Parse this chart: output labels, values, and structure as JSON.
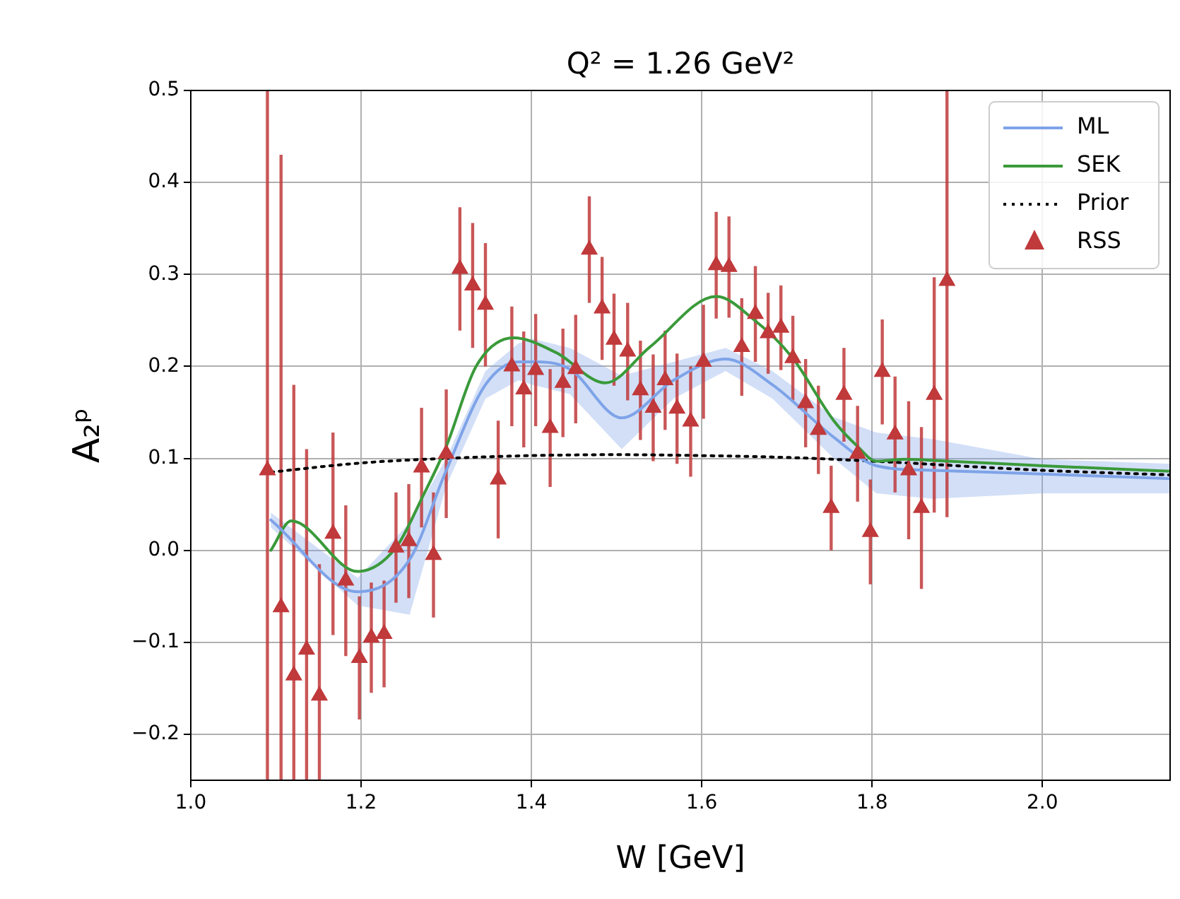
{
  "chart_data": {
    "type": "line",
    "title": "Q² = 1.26 GeV²",
    "xlabel": "W [GeV]",
    "ylabel": "A₂ᵖ",
    "xlim": [
      1.0,
      2.15
    ],
    "xticks": [
      {
        "value": 1.0,
        "label": "1.0"
      },
      1.2,
      1.4,
      1.6,
      1.8,
      {
        "value": 2.0,
        "label": "2.0"
      }
    ],
    "ylim": [
      -0.25,
      0.5
    ],
    "yticks": [
      {
        "value": -0.2,
        "label": "−0.2"
      },
      {
        "value": -0.1,
        "label": "−0.1"
      },
      {
        "value": 0,
        "label": "0.0"
      },
      0.1,
      0.2,
      0.3,
      0.4,
      0.5
    ],
    "grid": true,
    "legend": "top right",
    "series": [
      {
        "name": "ML",
        "color": "#7ea3e8",
        "marker": "none",
        "line_style": "solid",
        "x": [
          1.094,
          1.196,
          1.257,
          1.3,
          1.346,
          1.385,
          1.401,
          1.445,
          1.506,
          1.567,
          1.628,
          1.683,
          1.755,
          1.805,
          1.871,
          2.0,
          2.15
        ],
        "values": [
          0.033,
          -0.045,
          -0.01,
          0.087,
          0.18,
          0.205,
          0.205,
          0.197,
          0.144,
          0.185,
          0.208,
          0.18,
          0.123,
          0.092,
          0.087,
          0.083,
          0.078
        ],
        "lower": [
          0.025,
          -0.06,
          -0.07,
          0.07,
          0.165,
          0.185,
          0.18,
          0.17,
          0.11,
          0.165,
          0.195,
          0.165,
          0.1,
          0.062,
          0.056,
          0.062,
          0.062
        ],
        "upper": [
          0.041,
          -0.03,
          0.03,
          0.1,
          0.195,
          0.225,
          0.23,
          0.22,
          0.19,
          0.205,
          0.22,
          0.195,
          0.145,
          0.128,
          0.121,
          0.099,
          0.094
        ]
      },
      {
        "name": "SEK",
        "color": "#3a9a3a",
        "marker": "none",
        "line_style": "solid",
        "x": [
          1.094,
          1.118,
          1.196,
          1.241,
          1.271,
          1.3,
          1.335,
          1.379,
          1.429,
          1.487,
          1.539,
          1.617,
          1.661,
          1.706,
          1.755,
          1.783,
          1.805,
          1.838,
          1.888,
          2.0,
          2.15
        ],
        "values": [
          0.0,
          0.032,
          -0.023,
          0.003,
          0.056,
          0.113,
          0.2,
          0.231,
          0.215,
          0.182,
          0.221,
          0.276,
          0.251,
          0.21,
          0.141,
          0.113,
          0.097,
          0.099,
          0.097,
          0.092,
          0.086
        ]
      },
      {
        "name": "Prior",
        "color": "#000000",
        "marker": "none",
        "line_style": "dotted",
        "x": [
          1.094,
          1.2,
          1.3,
          1.4,
          1.5,
          1.6,
          1.7,
          1.8,
          2.0,
          2.15
        ],
        "values": [
          0.085,
          0.095,
          0.1,
          0.103,
          0.104,
          0.103,
          0.101,
          0.097,
          0.087,
          0.082
        ]
      },
      {
        "name": "RSS",
        "type": "scatter",
        "color": "#c0393b",
        "marker": "triangle",
        "x": [
          1.09,
          1.106,
          1.121,
          1.136,
          1.151,
          1.167,
          1.182,
          1.198,
          1.212,
          1.227,
          1.241,
          1.256,
          1.271,
          1.285,
          1.3,
          1.316,
          1.331,
          1.346,
          1.361,
          1.377,
          1.391,
          1.405,
          1.422,
          1.437,
          1.452,
          1.468,
          1.483,
          1.497,
          1.513,
          1.528,
          1.543,
          1.557,
          1.571,
          1.587,
          1.602,
          1.617,
          1.632,
          1.647,
          1.663,
          1.678,
          1.693,
          1.707,
          1.722,
          1.737,
          1.752,
          1.767,
          1.783,
          1.798,
          1.812,
          1.827,
          1.843,
          1.858,
          1.873,
          1.888
        ],
        "values": [
          0.087,
          -0.062,
          -0.136,
          -0.108,
          -0.158,
          0.018,
          -0.033,
          -0.117,
          -0.095,
          -0.091,
          0.003,
          0.01,
          0.09,
          -0.005,
          0.105,
          0.306,
          0.288,
          0.267,
          0.077,
          0.2,
          0.175,
          0.196,
          0.133,
          0.182,
          0.197,
          0.327,
          0.263,
          0.229,
          0.216,
          0.174,
          0.155,
          0.185,
          0.154,
          0.14,
          0.205,
          0.31,
          0.308,
          0.221,
          0.257,
          0.236,
          0.242,
          0.209,
          0.16,
          0.131,
          0.046,
          0.169,
          0.105,
          0.02,
          0.194,
          0.126,
          0.087,
          0.046,
          0.169,
          0.293
        ],
        "errors": [
          [
            -0.25,
            0.5
          ],
          [
            -0.25,
            0.43
          ],
          [
            -0.25,
            0.18
          ],
          [
            -0.25,
            0.11
          ],
          [
            -0.25,
            -0.015
          ],
          0.11,
          0.082,
          0.067,
          0.06,
          0.058,
          0.06,
          0.062,
          0.065,
          0.068,
          0.07,
          0.067,
          0.068,
          0.067,
          0.064,
          0.065,
          0.063,
          0.061,
          0.064,
          0.059,
          0.059,
          0.058,
          0.056,
          0.05,
          0.053,
          0.054,
          0.058,
          0.054,
          0.06,
          0.06,
          0.062,
          0.058,
          0.055,
          0.053,
          0.052,
          0.044,
          0.046,
          0.046,
          0.048,
          0.048,
          0.046,
          0.051,
          0.052,
          0.057,
          0.057,
          0.063,
          0.075,
          0.088,
          0.128,
          [
            0.036,
            0.5
          ]
        ]
      }
    ]
  }
}
